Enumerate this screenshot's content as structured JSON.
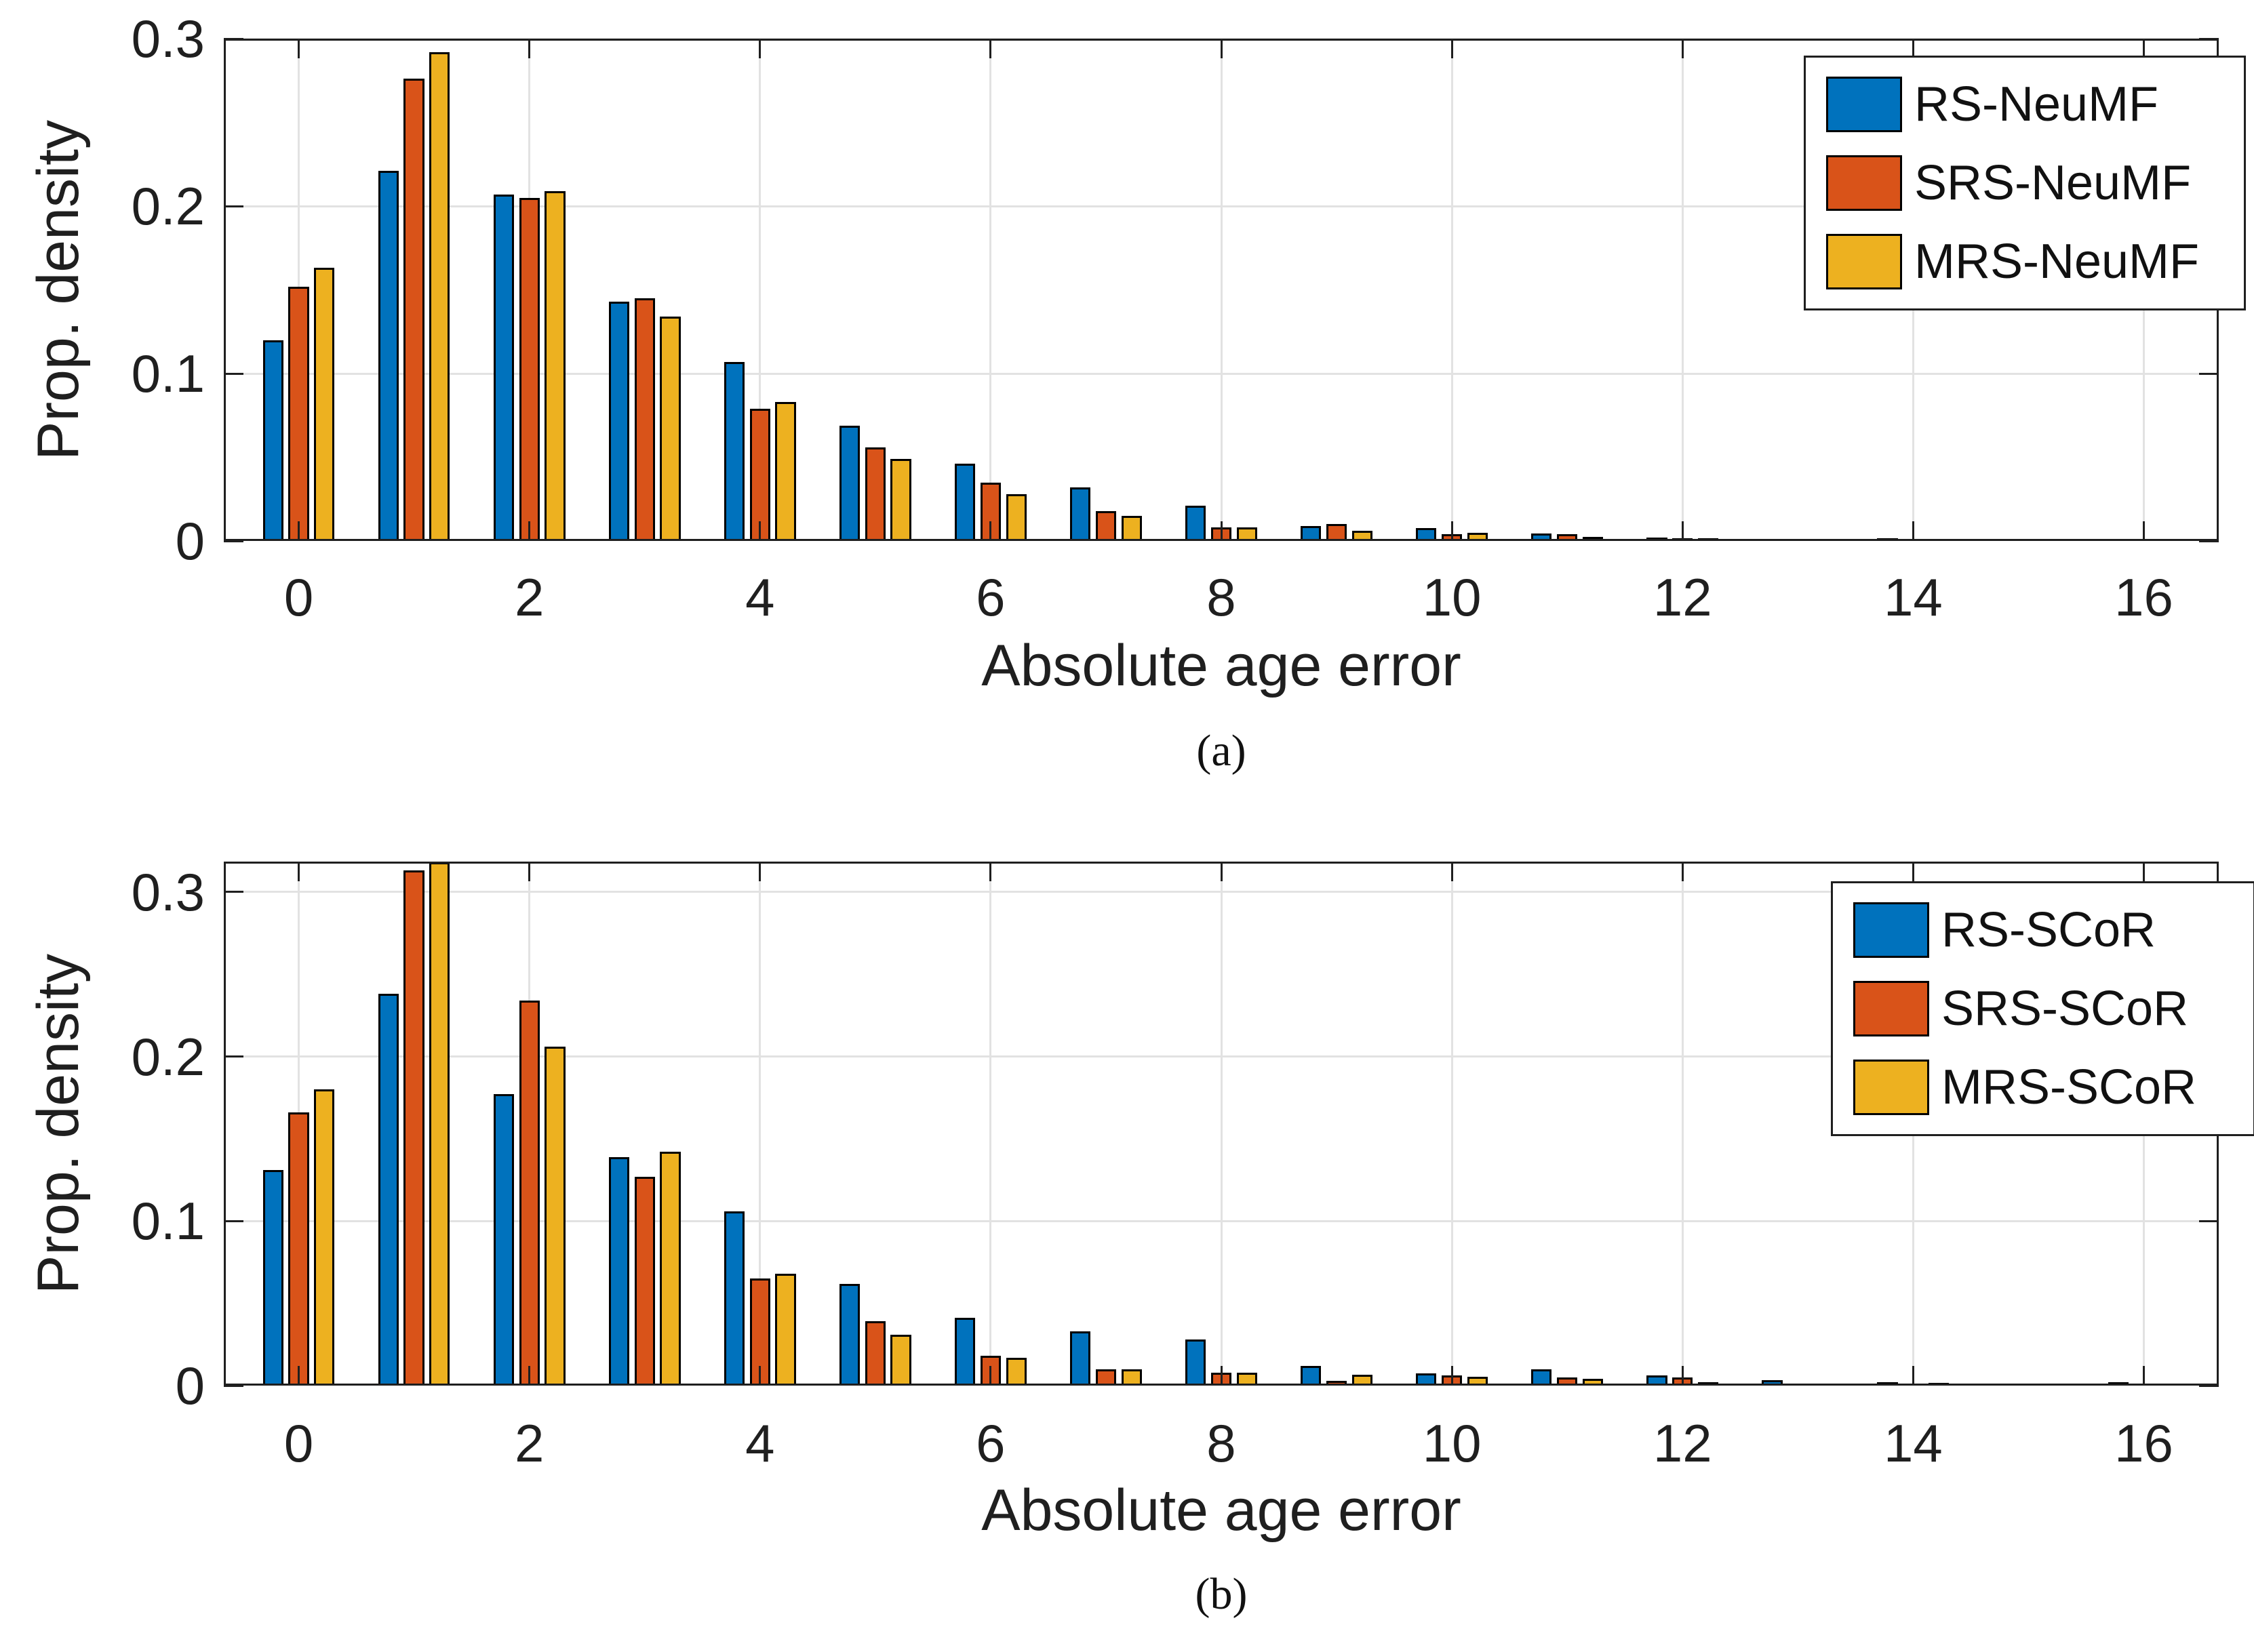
{
  "figure": {
    "background": "#ffffff",
    "axis_color": "#1f1f1f",
    "grid_color": "#e2e2e2",
    "bar_edge_color": "#000000"
  },
  "chart_data": [
    {
      "type": "bar",
      "title": "",
      "caption": "(a)",
      "xlabel": "Absolute age error",
      "ylabel": "Prop. density",
      "categories": [
        0,
        1,
        2,
        3,
        4,
        5,
        6,
        7,
        8,
        9,
        10,
        11,
        12,
        13,
        14,
        15,
        16
      ],
      "xticks": [
        0,
        2,
        4,
        6,
        8,
        10,
        12,
        14,
        16
      ],
      "yticks": [
        0,
        0.1,
        0.2,
        0.3
      ],
      "ytick_labels": [
        "0",
        "0.1",
        "0.2",
        "0.3"
      ],
      "xlim": [
        -0.65,
        16.65
      ],
      "ylim": [
        0,
        0.3
      ],
      "grid": true,
      "legend_position": "upper-right",
      "series": [
        {
          "name": "RS-NeuMF",
          "color": "#0072BD",
          "values": [
            0.12,
            0.221,
            0.207,
            0.143,
            0.107,
            0.069,
            0.046,
            0.032,
            0.021,
            0.009,
            0.0075,
            0.0045,
            0.002,
            0.001,
            0.0018,
            0.0008,
            0.001
          ]
        },
        {
          "name": "SRS-NeuMF",
          "color": "#D95319",
          "values": [
            0.152,
            0.276,
            0.205,
            0.145,
            0.079,
            0.056,
            0.035,
            0.018,
            0.008,
            0.01,
            0.004,
            0.004,
            0.0015,
            0.0005,
            0.0005,
            0.0003,
            0.0004
          ]
        },
        {
          "name": "MRS-NeuMF",
          "color": "#EDB120",
          "values": [
            0.163,
            0.292,
            0.209,
            0.134,
            0.083,
            0.049,
            0.028,
            0.015,
            0.008,
            0.006,
            0.005,
            0.0025,
            0.0015,
            0.0008,
            0.0003,
            0.0002,
            0.0004
          ]
        }
      ]
    },
    {
      "type": "bar",
      "title": "",
      "caption": "(b)",
      "xlabel": "Absolute age error",
      "ylabel": "Prop. density",
      "categories": [
        0,
        1,
        2,
        3,
        4,
        5,
        6,
        7,
        8,
        9,
        10,
        11,
        12,
        13,
        14,
        15,
        16
      ],
      "xticks": [
        0,
        2,
        4,
        6,
        8,
        10,
        12,
        14,
        16
      ],
      "yticks": [
        0,
        0.1,
        0.2,
        0.3
      ],
      "ytick_labels": [
        "0",
        "0.1",
        "0.2",
        "0.3"
      ],
      "xlim": [
        -0.65,
        16.65
      ],
      "ylim": [
        0,
        0.3185
      ],
      "grid": true,
      "legend_position": "upper-right",
      "series": [
        {
          "name": "RS-SCoR",
          "color": "#0072BD",
          "values": [
            0.131,
            0.238,
            0.177,
            0.139,
            0.106,
            0.062,
            0.041,
            0.033,
            0.028,
            0.012,
            0.0075,
            0.01,
            0.006,
            0.0035,
            0.0022,
            0.0012,
            0.002
          ]
        },
        {
          "name": "SRS-SCoR",
          "color": "#D95319",
          "values": [
            0.166,
            0.313,
            0.234,
            0.127,
            0.065,
            0.039,
            0.018,
            0.01,
            0.008,
            0.003,
            0.006,
            0.005,
            0.005,
            0.001,
            0.0008,
            0.0004,
            0.0003
          ]
        },
        {
          "name": "MRS-SCoR",
          "color": "#EDB120",
          "values": [
            0.18,
            0.318,
            0.206,
            0.142,
            0.068,
            0.031,
            0.017,
            0.01,
            0.008,
            0.0065,
            0.0055,
            0.004,
            0.002,
            0.0013,
            0.0015,
            0.0003,
            0.0005
          ]
        }
      ]
    }
  ]
}
